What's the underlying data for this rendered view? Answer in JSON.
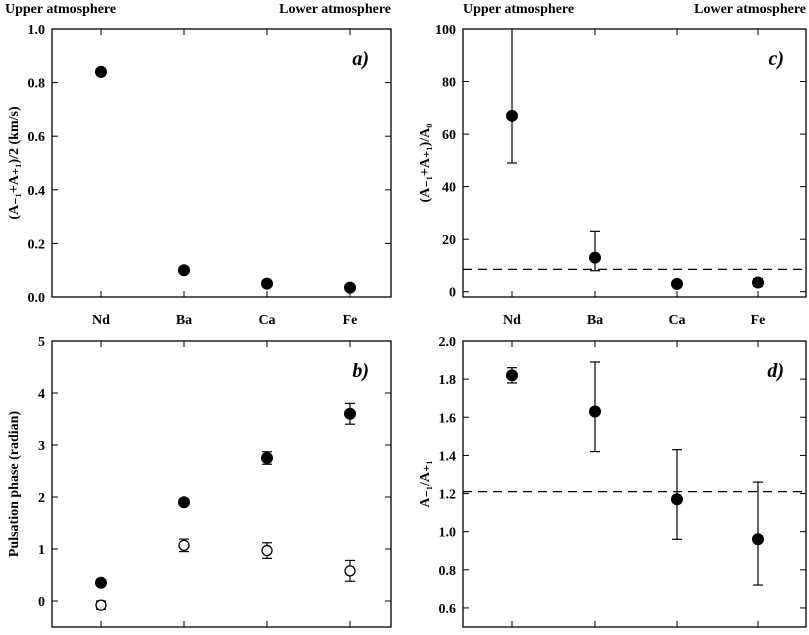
{
  "header": {
    "left_top_left": "Upper atmosphere",
    "left_top_right": "Lower atmosphere",
    "right_top_left": "Upper atmosphere",
    "right_top_right": "Lower atmosphere"
  },
  "chart_data": [
    {
      "id": "a",
      "type": "scatter",
      "panel_label": "a)",
      "ylabel": "(A₋₁+A₊₁)/2 (km/s)",
      "categories": [
        "Nd",
        "Ba",
        "Ca",
        "Fe"
      ],
      "ylim": [
        0,
        1.0
      ],
      "yticks": [
        0.0,
        0.2,
        0.4,
        0.6,
        0.8,
        1.0
      ],
      "ytick_labels": [
        "0.0",
        "0.2",
        "0.4",
        "0.6",
        "0.8",
        "1.0"
      ],
      "series": [
        {
          "name": "amplitude",
          "marker": "filled",
          "values": [
            0.84,
            0.1,
            0.05,
            0.035
          ],
          "errors": [
            0,
            0,
            0,
            0
          ]
        }
      ]
    },
    {
      "id": "b",
      "type": "scatter",
      "panel_label": "b)",
      "ylabel": "Pulsation phase (radian)",
      "categories": [
        "Nd",
        "Ba",
        "Ca",
        "Fe"
      ],
      "ylim": [
        -0.5,
        5
      ],
      "yticks": [
        0,
        1,
        2,
        3,
        4,
        5
      ],
      "ytick_labels": [
        "0",
        "1",
        "2",
        "3",
        "4",
        "5"
      ],
      "series": [
        {
          "name": "phase (filled)",
          "marker": "filled",
          "values": [
            0.35,
            1.9,
            2.75,
            3.6
          ],
          "errors": [
            0.04,
            0.06,
            0.12,
            0.2
          ]
        },
        {
          "name": "phase (open)",
          "marker": "open",
          "values": [
            -0.08,
            1.07,
            0.97,
            0.58
          ],
          "errors": [
            0.08,
            0.12,
            0.15,
            0.2
          ]
        }
      ]
    },
    {
      "id": "c",
      "type": "scatter",
      "panel_label": "c)",
      "ylabel": "(A₋₁+A₊₁)/A₀",
      "categories": [
        "Nd",
        "Ba",
        "Ca",
        "Fe"
      ],
      "ylim": [
        -2,
        100
      ],
      "yticks": [
        0,
        20,
        40,
        60,
        80,
        100
      ],
      "ytick_labels": [
        "0",
        "20",
        "40",
        "60",
        "80",
        "100"
      ],
      "reference_line": 8.5,
      "series": [
        {
          "name": "ratio",
          "marker": "filled",
          "values": [
            67,
            13,
            3,
            3.5
          ],
          "err_low": [
            18,
            5,
            0.5,
            1.5
          ],
          "err_high": [
            36,
            10,
            0.5,
            1.5
          ]
        }
      ]
    },
    {
      "id": "d",
      "type": "scatter",
      "panel_label": "d)",
      "ylabel": "A₋₁/A₊₁",
      "categories": [
        "Nd",
        "Ba",
        "Ca",
        "Fe"
      ],
      "ylim": [
        0.5,
        2.0
      ],
      "yticks": [
        0.6,
        0.8,
        1.0,
        1.2,
        1.4,
        1.6,
        1.8,
        2.0
      ],
      "ytick_labels": [
        "0.6",
        "0.8",
        "1.0",
        "1.2",
        "1.4",
        "1.6",
        "1.8",
        "2.0"
      ],
      "reference_line": 1.21,
      "series": [
        {
          "name": "ratio",
          "marker": "filled",
          "values": [
            1.82,
            1.63,
            1.17,
            0.96
          ],
          "err_low": [
            0.04,
            0.21,
            0.21,
            0.24
          ],
          "err_high": [
            0.04,
            0.26,
            0.26,
            0.3
          ]
        }
      ]
    }
  ]
}
